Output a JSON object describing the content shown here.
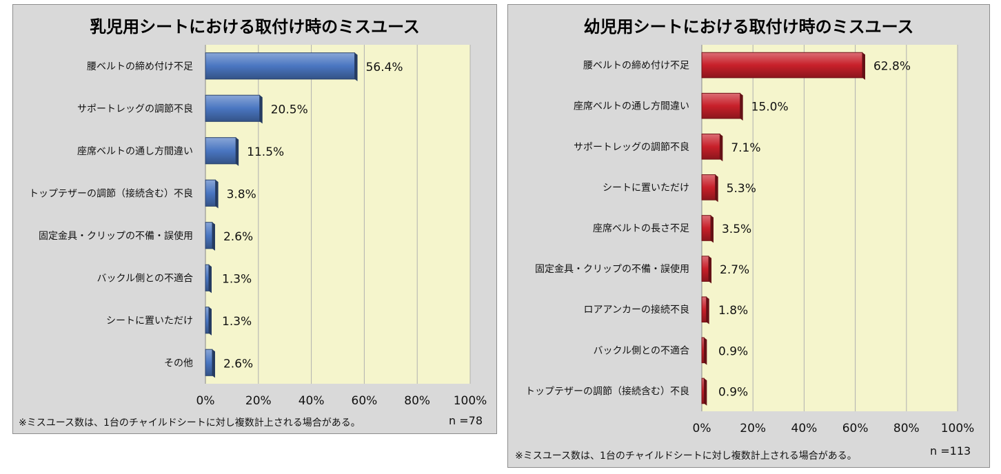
{
  "chart_data": [
    {
      "id": "infant",
      "type": "bar",
      "orientation": "horizontal",
      "title": "乳児用シートにおける取付け時のミスユース",
      "categories": [
        "腰ベルトの締め付け不足",
        "サポートレッグの調節不良",
        "座席ベルトの通し方間違い",
        "トップテザーの調節（接続含む）不良",
        "固定金具・クリップの不備・誤使用",
        "バックル側との不適合",
        "シートに置いただけ",
        "その他"
      ],
      "values": [
        56.4,
        20.5,
        11.5,
        3.8,
        2.6,
        1.3,
        1.3,
        2.6
      ],
      "value_labels": [
        "56.4%",
        "20.5%",
        "11.5%",
        "3.8%",
        "2.6%",
        "1.3%",
        "1.3%",
        "2.6%"
      ],
      "xlim": [
        0,
        100
      ],
      "xticks": [
        "0%",
        "20%",
        "40%",
        "60%",
        "80%",
        "100%"
      ],
      "grid": true,
      "bar_color": "#4a76c1",
      "footnote": "※ミスユース数は、1台のチャイルドシートに対し複数計上される場合がある。",
      "n_label": "n =78"
    },
    {
      "id": "toddler",
      "type": "bar",
      "orientation": "horizontal",
      "title": "幼児用シートにおける取付け時のミスユース",
      "categories": [
        "腰ベルトの締め付け不足",
        "座席ベルトの通し方間違い",
        "サポートレッグの調節不良",
        "シートに置いただけ",
        "座席ベルトの長さ不足",
        "固定金具・クリップの不備・誤使用",
        "ロアアンカーの接続不良",
        "バックル側との不適合",
        "トップテザーの調節（接続含む）不良"
      ],
      "values": [
        62.8,
        15.0,
        7.1,
        5.3,
        3.5,
        2.7,
        1.8,
        0.9,
        0.9
      ],
      "value_labels": [
        "62.8%",
        "15.0%",
        "7.1%",
        "5.3%",
        "3.5%",
        "2.7%",
        "1.8%",
        "0.9%",
        "0.9%"
      ],
      "xlim": [
        0,
        100
      ],
      "xticks": [
        "0%",
        "20%",
        "40%",
        "60%",
        "80%",
        "100%"
      ],
      "grid": true,
      "bar_color": "#c8202a",
      "footnote": "※ミスユース数は、1台のチャイルドシートに対し複数計上される場合がある。",
      "n_label": "n =113"
    }
  ],
  "colors": {
    "plot_background": "#f5f5cc",
    "panel_background": "#d9d9d9",
    "grid": "#b0b0b0"
  }
}
